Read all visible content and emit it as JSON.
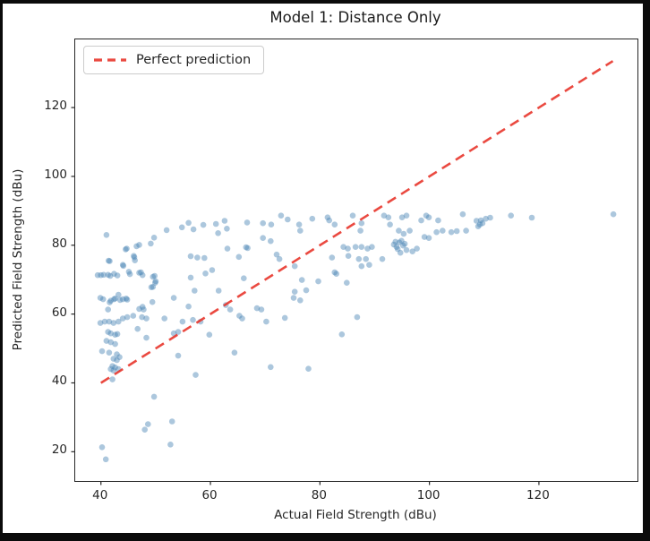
{
  "chart_data": {
    "type": "scatter",
    "title": "Model 1: Distance Only",
    "xlabel": "Actual Field Strength (dBu)",
    "ylabel": "Predicted Field Strength (dBu)",
    "xlim": [
      35.3,
      138.0
    ],
    "ylim": [
      11.5,
      139.8
    ],
    "x_ticks": [
      40,
      60,
      80,
      100,
      120
    ],
    "y_ticks": [
      20,
      40,
      60,
      80,
      100,
      120
    ],
    "grid": false,
    "legend": {
      "position": "upper-left",
      "entries": [
        {
          "label": "Perfect prediction",
          "style": "dashed",
          "color": "#e8352b"
        }
      ]
    },
    "reference_line": {
      "name": "perfect-prediction",
      "from": [
        40,
        40
      ],
      "to": [
        133.5,
        133.5
      ],
      "color": "#e8352b",
      "opacity": 0.9,
      "dash": [
        11,
        7
      ],
      "width": 2.6
    },
    "scatter": {
      "name": "model-1-predictions",
      "color": "#4682B4",
      "opacity": 0.45,
      "marker_radius": 3.3,
      "points": [
        [
          41.4,
          75.5
        ],
        [
          44.1,
          74.0
        ],
        [
          45.3,
          71.6
        ],
        [
          41.7,
          71.1
        ],
        [
          43.0,
          71.2
        ],
        [
          40.0,
          71.3
        ],
        [
          44.5,
          78.8
        ],
        [
          46.1,
          76.5
        ],
        [
          47.0,
          80.1
        ],
        [
          49.1,
          80.5
        ],
        [
          47.0,
          72.0
        ],
        [
          47.6,
          71.3
        ],
        [
          49.7,
          82.2
        ],
        [
          49.8,
          71.1
        ],
        [
          49.9,
          69.1
        ],
        [
          49.5,
          67.9
        ],
        [
          44.7,
          79.0
        ],
        [
          46.5,
          79.7
        ],
        [
          46.0,
          76.9
        ],
        [
          46.2,
          75.6
        ],
        [
          41.6,
          75.4
        ],
        [
          44.0,
          74.3
        ],
        [
          45.1,
          72.3
        ],
        [
          42.4,
          71.7
        ],
        [
          40.5,
          71.4
        ],
        [
          39.4,
          71.3
        ],
        [
          41.3,
          71.4
        ],
        [
          47.3,
          72.1
        ],
        [
          49.5,
          70.8
        ],
        [
          50.0,
          69.5
        ],
        [
          49.2,
          67.8
        ],
        [
          43.2,
          65.6
        ],
        [
          42.4,
          64.3
        ],
        [
          41.6,
          63.4
        ],
        [
          43.5,
          64.1
        ],
        [
          44.6,
          64.5
        ],
        [
          39.9,
          64.7
        ],
        [
          47.6,
          62.1
        ],
        [
          40.4,
          64.3
        ],
        [
          41.8,
          63.9
        ],
        [
          42.6,
          64.5
        ],
        [
          44.0,
          64.3
        ],
        [
          44.8,
          64.2
        ],
        [
          41.3,
          61.3
        ],
        [
          39.9,
          57.4
        ],
        [
          40.7,
          57.8
        ],
        [
          41.5,
          57.8
        ],
        [
          42.3,
          57.4
        ],
        [
          43.2,
          57.8
        ],
        [
          44.0,
          58.7
        ],
        [
          44.8,
          59.1
        ],
        [
          45.9,
          59.5
        ],
        [
          47.5,
          59.1
        ],
        [
          48.3,
          58.7
        ],
        [
          46.7,
          55.7
        ],
        [
          41.3,
          54.8
        ],
        [
          41.8,
          54.4
        ],
        [
          42.6,
          54.0
        ],
        [
          43.0,
          54.2
        ],
        [
          41.0,
          52.2
        ],
        [
          41.8,
          51.8
        ],
        [
          42.6,
          51.3
        ],
        [
          40.2,
          49.2
        ],
        [
          41.5,
          48.8
        ],
        [
          42.9,
          48.3
        ],
        [
          42.3,
          47.0
        ],
        [
          42.9,
          46.6
        ],
        [
          43.4,
          47.5
        ],
        [
          42.1,
          44.9
        ],
        [
          42.6,
          44.5
        ],
        [
          41.8,
          44.0
        ],
        [
          42.3,
          43.6
        ],
        [
          43.2,
          44.0
        ],
        [
          42.1,
          41.0
        ],
        [
          49.4,
          63.5
        ],
        [
          47.0,
          61.5
        ],
        [
          47.8,
          61.3
        ],
        [
          48.3,
          53.1
        ],
        [
          40.2,
          21.3
        ],
        [
          40.9,
          17.8
        ],
        [
          41.0,
          83.0
        ],
        [
          52.0,
          84.4
        ],
        [
          54.8,
          85.2
        ],
        [
          56.0,
          86.5
        ],
        [
          56.9,
          84.6
        ],
        [
          58.7,
          85.9
        ],
        [
          56.4,
          76.8
        ],
        [
          57.6,
          76.4
        ],
        [
          58.9,
          76.3
        ],
        [
          61.0,
          86.2
        ],
        [
          62.6,
          87.1
        ],
        [
          63.0,
          84.8
        ],
        [
          61.4,
          83.5
        ],
        [
          63.1,
          79.0
        ],
        [
          65.2,
          76.6
        ],
        [
          66.5,
          79.4
        ],
        [
          66.8,
          79.2
        ],
        [
          66.7,
          86.6
        ],
        [
          66.1,
          70.4
        ],
        [
          60.3,
          72.8
        ],
        [
          59.1,
          71.8
        ],
        [
          61.5,
          66.8
        ],
        [
          56.4,
          70.6
        ],
        [
          57.1,
          66.8
        ],
        [
          53.3,
          64.7
        ],
        [
          56.0,
          62.2
        ],
        [
          62.8,
          62.6
        ],
        [
          63.6,
          61.3
        ],
        [
          65.3,
          59.5
        ],
        [
          65.8,
          58.7
        ],
        [
          68.5,
          61.7
        ],
        [
          69.3,
          61.3
        ],
        [
          64.4,
          48.8
        ],
        [
          54.1,
          47.9
        ],
        [
          57.3,
          42.3
        ],
        [
          51.6,
          58.7
        ],
        [
          54.9,
          57.8
        ],
        [
          53.3,
          54.4
        ],
        [
          54.1,
          54.8
        ],
        [
          56.8,
          58.3
        ],
        [
          58.2,
          57.8
        ],
        [
          59.8,
          54.0
        ],
        [
          49.7,
          36.0
        ],
        [
          48.6,
          28.0
        ],
        [
          48.0,
          26.4
        ],
        [
          53.0,
          28.8
        ],
        [
          52.7,
          22.1
        ],
        [
          69.6,
          86.4
        ],
        [
          71.1,
          86.0
        ],
        [
          69.6,
          82.1
        ],
        [
          71.0,
          81.2
        ],
        [
          72.6,
          76.0
        ],
        [
          72.1,
          77.3
        ],
        [
          72.9,
          88.6
        ],
        [
          70.2,
          57.8
        ],
        [
          73.6,
          58.9
        ],
        [
          71.0,
          44.6
        ],
        [
          75.4,
          73.9
        ],
        [
          75.4,
          66.5
        ],
        [
          74.1,
          87.5
        ],
        [
          76.2,
          86.0
        ],
        [
          76.4,
          84.2
        ],
        [
          78.6,
          87.7
        ],
        [
          81.4,
          88.1
        ],
        [
          81.7,
          87.2
        ],
        [
          82.7,
          86.0
        ],
        [
          86.0,
          88.6
        ],
        [
          87.6,
          86.4
        ],
        [
          87.4,
          84.2
        ],
        [
          84.3,
          79.5
        ],
        [
          85.1,
          79.0
        ],
        [
          86.5,
          79.5
        ],
        [
          87.6,
          79.5
        ],
        [
          88.7,
          79.0
        ],
        [
          89.5,
          79.5
        ],
        [
          82.2,
          76.4
        ],
        [
          82.7,
          72.1
        ],
        [
          85.2,
          76.9
        ],
        [
          87.1,
          76.0
        ],
        [
          88.4,
          76.0
        ],
        [
          89.0,
          74.3
        ],
        [
          87.6,
          73.9
        ],
        [
          76.7,
          69.9
        ],
        [
          77.5,
          66.9
        ],
        [
          79.7,
          69.5
        ],
        [
          83.0,
          71.7
        ],
        [
          84.9,
          69.1
        ],
        [
          75.2,
          64.7
        ],
        [
          76.4,
          64.0
        ],
        [
          86.8,
          59.1
        ],
        [
          84.0,
          54.1
        ],
        [
          77.9,
          44.1
        ],
        [
          91.7,
          88.6
        ],
        [
          92.5,
          88.1
        ],
        [
          92.8,
          86.0
        ],
        [
          95.0,
          88.1
        ],
        [
          95.8,
          88.6
        ],
        [
          98.5,
          87.2
        ],
        [
          99.4,
          88.6
        ],
        [
          99.9,
          88.1
        ],
        [
          101.6,
          87.2
        ],
        [
          102.4,
          84.2
        ],
        [
          101.3,
          83.8
        ],
        [
          94.4,
          84.2
        ],
        [
          95.3,
          83.3
        ],
        [
          96.4,
          84.2
        ],
        [
          91.4,
          76.0
        ],
        [
          94.7,
          77.8
        ],
        [
          95.8,
          78.6
        ],
        [
          96.9,
          78.2
        ],
        [
          97.7,
          79.0
        ],
        [
          99.1,
          82.4
        ],
        [
          99.9,
          82.1
        ],
        [
          104.0,
          83.8
        ],
        [
          105.0,
          84.1
        ],
        [
          93.5,
          80.2
        ],
        [
          94.0,
          79.5
        ],
        [
          94.5,
          80.8
        ],
        [
          95.2,
          79.9
        ],
        [
          93.8,
          81.0
        ],
        [
          94.9,
          81.3
        ],
        [
          95.5,
          80.4
        ],
        [
          94.2,
          78.9
        ],
        [
          106.1,
          89.0
        ],
        [
          108.6,
          87.1
        ],
        [
          109.2,
          86.0
        ],
        [
          109.4,
          87.2
        ],
        [
          110.3,
          87.7
        ],
        [
          111.1,
          88.0
        ],
        [
          109.7,
          86.4
        ],
        [
          108.9,
          85.5
        ],
        [
          106.7,
          84.2
        ],
        [
          114.9,
          88.6
        ],
        [
          118.7,
          88.0
        ],
        [
          133.6,
          89.0
        ]
      ]
    }
  },
  "colors": {
    "axes_text": "#262626",
    "frame": "#0b0b0b",
    "legend_border": "#cccccc",
    "scatter": "#4682B4",
    "reference_line": "#e8352b"
  }
}
